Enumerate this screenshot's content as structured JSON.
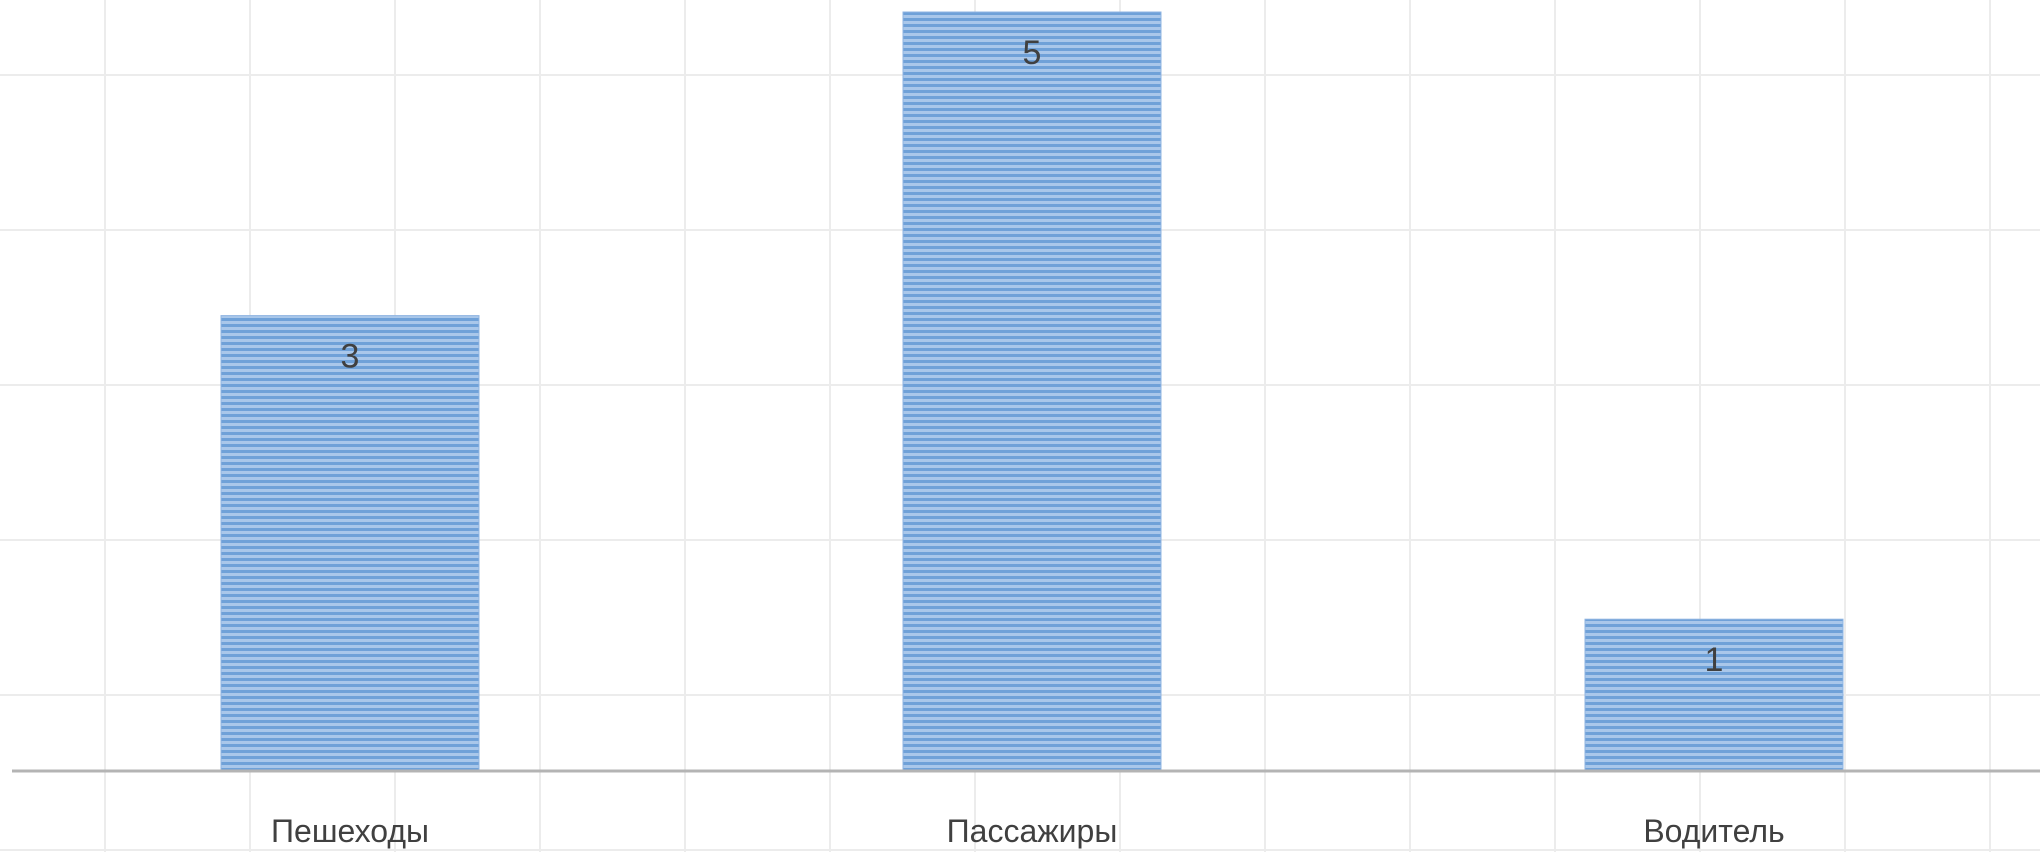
{
  "chart_data": {
    "type": "bar",
    "categories": [
      "Пешеходы",
      "Пассажиры",
      "Водитель"
    ],
    "values": [
      3,
      5,
      1
    ],
    "data_labels": [
      "3",
      "5",
      "1"
    ],
    "ylim": [
      0,
      5
    ],
    "grid": true,
    "colors": {
      "bar_light": "#a9c7ea",
      "bar_stripe": "#6fa1d8",
      "bar_edge": "#8fb4e2",
      "axis": "#b4b4b4",
      "grid": "#ececec",
      "label": "#404040"
    }
  }
}
